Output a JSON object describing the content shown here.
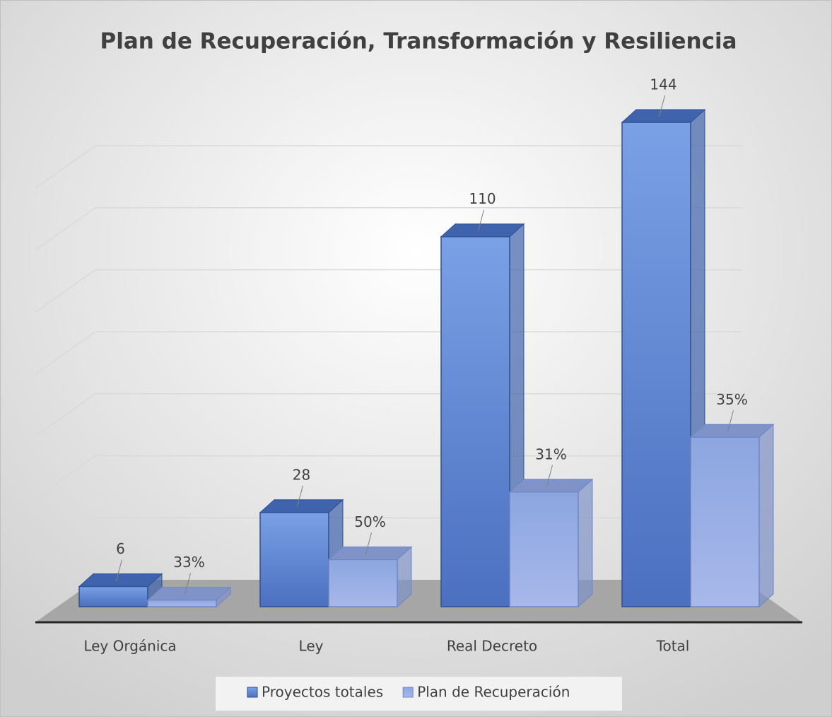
{
  "chart_data": {
    "type": "bar3d",
    "title": "Plan de Recuperación, Transformación y Resiliencia",
    "categories": [
      "Ley Orgánica",
      "Ley",
      "Real Decreto",
      "Total"
    ],
    "series": [
      {
        "name": "Proyectos totales",
        "color": "#4472c4",
        "values": [
          6,
          28,
          110,
          144
        ]
      },
      {
        "name": "Plan de Recuperación",
        "color": "#9eb1e3",
        "values": [
          33,
          50,
          31,
          35
        ],
        "value_labels": [
          "33%",
          "50%",
          "31%",
          "35%"
        ],
        "share_of": 0
      }
    ],
    "ylim": [
      0,
      160
    ],
    "yticks": [
      0,
      20,
      40,
      60,
      80,
      100,
      120,
      140
    ],
    "grid": true,
    "legend": "bottom"
  }
}
